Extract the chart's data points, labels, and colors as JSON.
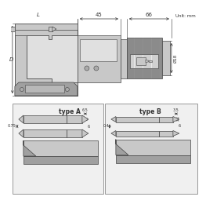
{
  "bg_color": "#ffffff",
  "part_color": "#c8c8c8",
  "part_dark": "#a0a0a0",
  "part_light": "#e0e0e0",
  "knurl_color": "#909090",
  "line_color": "#444444",
  "dim_color": "#333333",
  "unit_text": "Unit: mm",
  "dim_45": "45",
  "dim_66": "66",
  "dim_L": "L",
  "dim_D": "D",
  "dim_d18": "Ø18",
  "type_a_label": "type A",
  "type_b_label": "type B",
  "type_a_w1": "0.75",
  "type_a_w2": "6.5",
  "type_a_h": "6",
  "type_b_w1": "0.4",
  "type_b_w2": "3.5",
  "type_b_h": "6"
}
